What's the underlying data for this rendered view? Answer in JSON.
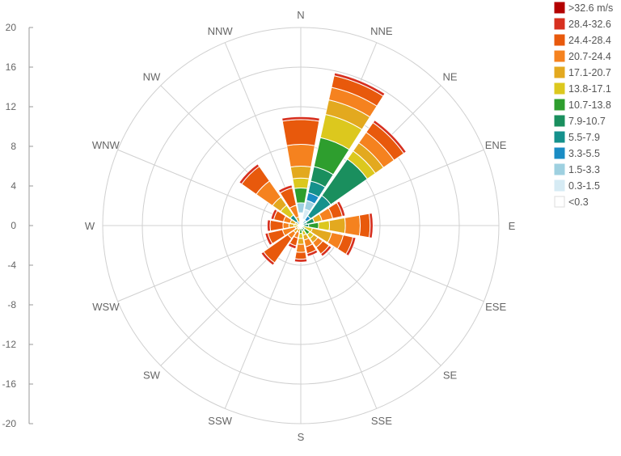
{
  "chart_data": {
    "type": "wind-rose",
    "directions": [
      "N",
      "NNE",
      "NE",
      "ENE",
      "E",
      "ESE",
      "SE",
      "SSE",
      "S",
      "SSW",
      "SW",
      "WSW",
      "W",
      "WNW",
      "NW",
      "NNW"
    ],
    "y_axis": {
      "ticks": [
        "20",
        "16",
        "12",
        "8",
        "4",
        "0",
        "-4",
        "-8",
        "-12",
        "-16",
        "-20"
      ],
      "range": [
        -20,
        20
      ]
    },
    "radial_max": 20,
    "legend": [
      {
        "label": ">32.6 m/s",
        "color": "#b30000"
      },
      {
        "label": "28.4-32.6",
        "color": "#d7301f"
      },
      {
        "label": "24.4-28.4",
        "color": "#e8590c"
      },
      {
        "label": "20.7-24.4",
        "color": "#f5821f"
      },
      {
        "label": "17.1-20.7",
        "color": "#e3a91f"
      },
      {
        "label": "13.8-17.1",
        "color": "#dcc81e"
      },
      {
        "label": "10.7-13.8",
        "color": "#2e9e2e"
      },
      {
        "label": "7.9-10.7",
        "color": "#1a8f5e"
      },
      {
        "label": "5.5-7.9",
        "color": "#15918c"
      },
      {
        "label": "3.3-5.5",
        "color": "#1a8cc4"
      },
      {
        "label": "1.5-3.3",
        "color": "#9ed0e0"
      },
      {
        "label": "0.3-1.5",
        "color": "#d6ebf4"
      },
      {
        "label": "<0.3",
        "color": "#ffffff"
      }
    ],
    "series_by_direction": {
      "N": [
        0,
        0.3,
        2.5,
        2.2,
        1.2,
        1.0,
        1.5,
        0,
        0,
        0,
        1.0,
        0,
        1.3
      ],
      "NNE": [
        0,
        0.3,
        1.2,
        1.3,
        1.5,
        2.4,
        3.0,
        1.5,
        1.2,
        0.8,
        0.9,
        1.0,
        0.7
      ],
      "NE": [
        0,
        0.3,
        1.2,
        1.3,
        1.0,
        1.0,
        0,
        4.5,
        2.5,
        0.5,
        0.4,
        0.3,
        0
      ],
      "ENE": [
        0,
        0.3,
        1.0,
        1.1,
        0.8,
        0,
        0,
        0.8,
        0.6,
        0,
        0,
        0,
        0
      ],
      "E": [
        0,
        0.3,
        1.0,
        1.5,
        1.6,
        1.1,
        1.0,
        0.5,
        0.3,
        0,
        0,
        0,
        0
      ],
      "ESE": [
        0,
        0.3,
        1.0,
        1.2,
        2.0,
        1.2,
        0,
        0,
        0,
        0,
        0,
        0,
        0
      ],
      "SE": [
        0,
        0.3,
        0.8,
        0.6,
        0.5,
        0.5,
        0.6,
        0.5,
        0,
        0,
        0,
        0,
        0
      ],
      "SSE": [
        0,
        0.3,
        0.7,
        0.7,
        0.5,
        0.4,
        0.3,
        0.3,
        0,
        0,
        0,
        0,
        0
      ],
      "S": [
        0,
        0.3,
        0.7,
        0.8,
        0.6,
        0.5,
        0.5,
        0.3,
        0,
        0,
        0,
        0,
        0
      ],
      "SSW": [
        0,
        0.3,
        0.8,
        0.6,
        0.4,
        0.3,
        0,
        0,
        0,
        0,
        0,
        0,
        0
      ],
      "SW": [
        0,
        0.3,
        3.0,
        0.7,
        0.5,
        0.4,
        0,
        0,
        0,
        0,
        0,
        0,
        0
      ],
      "WSW": [
        0,
        0.3,
        1.5,
        1.3,
        0.6,
        0,
        0,
        0,
        0,
        0,
        0,
        0,
        0
      ],
      "W": [
        0,
        0.3,
        1.3,
        0.6,
        0.5,
        0.4,
        0.3,
        0,
        0,
        0,
        0,
        0,
        0
      ],
      "WNW": [
        0,
        0.3,
        1.0,
        0.7,
        0.5,
        0.4,
        0.2,
        0,
        0,
        0,
        0,
        0,
        0
      ],
      "NW": [
        0,
        0.3,
        1.8,
        2.0,
        1.0,
        1.2,
        0,
        0,
        0.8,
        0.5,
        0,
        0,
        0
      ],
      "NNW": [
        0,
        0.3,
        1.8,
        1.2,
        0.5,
        0.4,
        0,
        0,
        0,
        0,
        0,
        0,
        0
      ]
    },
    "grid": true,
    "legend_position": "right"
  }
}
